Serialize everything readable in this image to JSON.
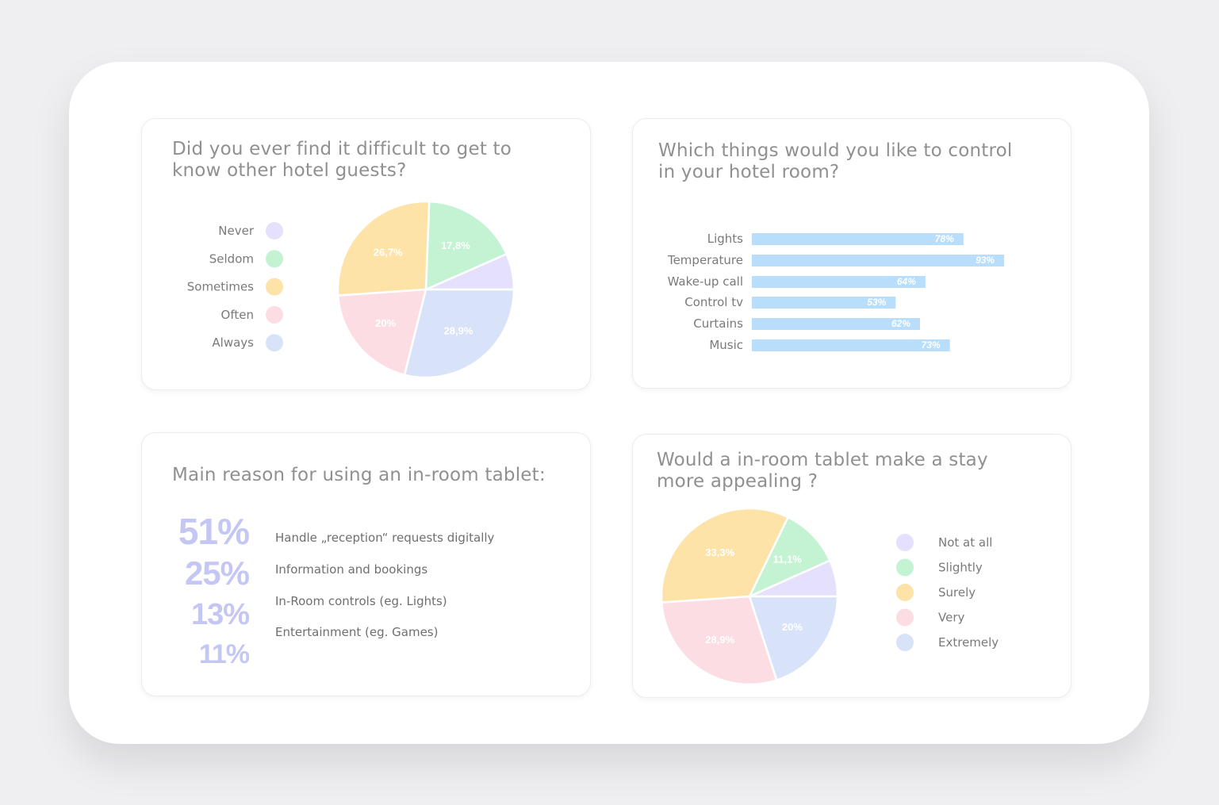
{
  "colors": {
    "purple": "#e5e0fb",
    "green": "#c3f3d3",
    "yellow": "#fde3a7",
    "pink": "#fcdde4",
    "blue": "#d8e2f9",
    "bar": "#b8defc",
    "stat": "#c4c6f4"
  },
  "card1": {
    "title_line1": "Did you ever find it difficult to get to",
    "title_line2": "know other hotel guests?"
  },
  "card2": {
    "title_line1": "Which things would you like to control",
    "title_line2": "in your hotel room?"
  },
  "card3": {
    "title": "Main reason for using an in-room tablet:",
    "stats": [
      {
        "pct": "51%",
        "text": "Handle „reception“ requests digitally"
      },
      {
        "pct": "25%",
        "text": "Information and bookings"
      },
      {
        "pct": "13%",
        "text": "In-Room controls (eg. Lights)"
      },
      {
        "pct": "11%",
        "text": "Entertainment (eg. Games)"
      }
    ]
  },
  "card4": {
    "title_line1": "Would a in-room tablet make a stay",
    "title_line2": "more appealing ?"
  },
  "chart_data": [
    {
      "type": "pie",
      "title": "Did you ever find it difficult to get to know other hotel guests?",
      "slices": [
        {
          "label": "Never",
          "value": 6.6,
          "display": "",
          "color": "#e5e0fb"
        },
        {
          "label": "Seldom",
          "value": 17.8,
          "display": "17,8%",
          "color": "#c3f3d3"
        },
        {
          "label": "Sometimes",
          "value": 26.7,
          "display": "26,7%",
          "color": "#fde3a7"
        },
        {
          "label": "Often",
          "value": 20,
          "display": "20%",
          "color": "#fcdde4"
        },
        {
          "label": "Always",
          "value": 28.9,
          "display": "28,9%",
          "color": "#d8e2f9"
        }
      ],
      "legend": [
        "Never",
        "Seldom",
        "Sometimes",
        "Often",
        "Always"
      ],
      "legend_position": "left"
    },
    {
      "type": "bar",
      "orientation": "horizontal",
      "title": "Which things would you like to control in your hotel room?",
      "categories": [
        "Lights",
        "Temperature",
        "Wake-up call",
        "Control tv",
        "Curtains",
        "Music"
      ],
      "values": [
        78,
        93,
        64,
        53,
        62,
        73
      ],
      "value_labels": [
        "78%",
        "93%",
        "64%",
        "53%",
        "62%",
        "73%"
      ],
      "xlim": [
        0,
        100
      ],
      "grid": false
    },
    {
      "type": "pie",
      "title": "Would a in-room tablet make a stay more appealing ?",
      "slices": [
        {
          "label": "Not at all",
          "value": 6.7,
          "display": "",
          "color": "#e5e0fb"
        },
        {
          "label": "Slightly",
          "value": 11.1,
          "display": "11,1%",
          "color": "#c3f3d3"
        },
        {
          "label": "Surely",
          "value": 33.3,
          "display": "33,3%",
          "color": "#fde3a7"
        },
        {
          "label": "Very",
          "value": 28.9,
          "display": "28,9%",
          "color": "#fcdde4"
        },
        {
          "label": "Extremely",
          "value": 20,
          "display": "20%",
          "color": "#d8e2f9"
        }
      ],
      "legend": [
        "Not at all",
        "Slightly",
        "Surely",
        "Very",
        "Extremely"
      ],
      "legend_position": "right"
    }
  ]
}
